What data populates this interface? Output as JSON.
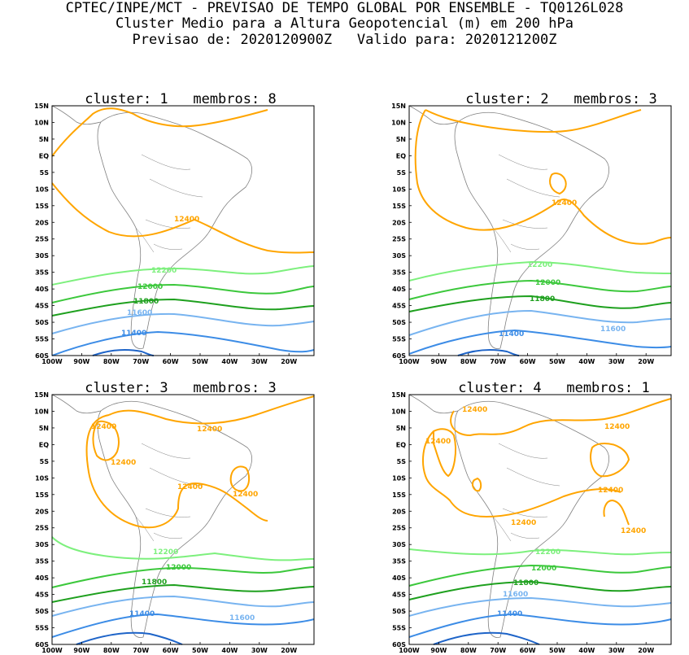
{
  "header": {
    "line1": "CPTEC/INPE/MCT - PREVISAO DE TEMPO GLOBAL POR ENSEMBLE - TQ0126L028",
    "line2": "Cluster Medio para a Altura Geopotencial (m) em 200 hPa",
    "line3": "Previsao de: 2020120900Z   Valido para: 2020121200Z"
  },
  "lat_labels": [
    "15N",
    "10N",
    "5N",
    "EQ",
    "5S",
    "10S",
    "15S",
    "20S",
    "25S",
    "30S",
    "35S",
    "40S",
    "45S",
    "50S",
    "55S",
    "60S"
  ],
  "lon_labels": [
    "100W",
    "90W",
    "80W",
    "70W",
    "60W",
    "50W",
    "40W",
    "30W",
    "20W"
  ],
  "colors": {
    "c12400": "#ffa500",
    "c12200": "#7df07d",
    "c12000": "#3cc83c",
    "c11800": "#1ea01e",
    "c11600": "#78b4f0",
    "c11400": "#3c8ce6",
    "c11200": "#1e64c8",
    "coast": "#808080"
  },
  "panels": [
    {
      "title": "cluster: 1   membros: 8",
      "labels": {
        "c12400": "12400",
        "c12200": "12200",
        "c12000": "12000",
        "c11800": "11800",
        "c11600": "11600",
        "c11400": "11400"
      }
    },
    {
      "title": "cluster: 2   membros: 3",
      "labels": {
        "c12400": "12400",
        "c12200": "12200",
        "c12000": "12000",
        "c11800": "11800",
        "c11600": "11600",
        "c11400": "11400",
        "c11600b": "11600"
      }
    },
    {
      "title": "cluster: 3   membros: 3",
      "labels": {
        "c12400a": "12400",
        "c12400b": "12400",
        "c12400c": "12400",
        "c12400d": "12400",
        "c12400e": "12400",
        "c12400f": "12400",
        "c12200": "12200",
        "c12000": "12000",
        "c11800": "11800",
        "c11600": "11600",
        "c11400": "11400"
      }
    },
    {
      "title": "cluster: 4   membros: 1",
      "labels": {
        "c12400a": "12400",
        "c12400b": "12400",
        "c12400c": "12400",
        "c12400d": "12400",
        "c12400e": "12400",
        "c12400f": "12400",
        "c12200": "12200",
        "c12000": "12000",
        "c11800": "11800",
        "c11600": "11600",
        "c11400": "11400"
      }
    }
  ]
}
